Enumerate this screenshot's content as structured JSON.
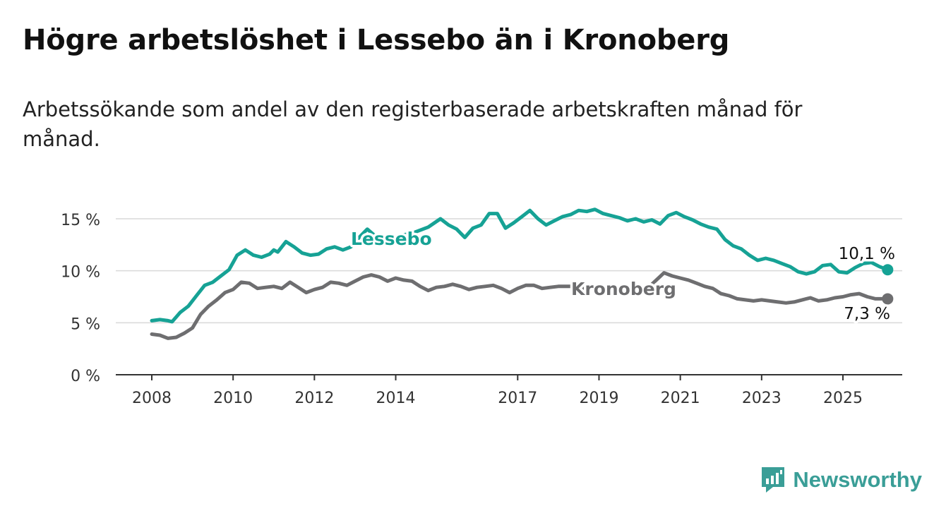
{
  "title": "Högre arbetslöshet i Lessebo än i Kronoberg",
  "subtitle": "Arbetssökande som andel av den registerbaserade arbetskraften månad för månad.",
  "brand": {
    "name": "Newsworthy",
    "icon": "newsworthy-logo-icon"
  },
  "colors": {
    "lessebo": "#16a295",
    "kronoberg": "#6e6e70",
    "grid": "#d9d9d9",
    "axis": "#333333"
  },
  "chart_data": {
    "type": "line",
    "title": "Högre arbetslöshet i Lessebo än i Kronoberg",
    "subtitle": "Arbetssökande som andel av den registerbaserade arbetskraften månad för månad.",
    "xlabel": "",
    "ylabel": "",
    "y_ticks": [
      0,
      5,
      10,
      15
    ],
    "y_tick_labels": [
      "0 %",
      "5 %",
      "10 %",
      "15 %"
    ],
    "x_ticks": [
      2008,
      2010,
      2012,
      2014,
      2017,
      2019,
      2021,
      2023,
      2025
    ],
    "x_tick_labels": [
      "2008",
      "2010",
      "2012",
      "2014",
      "2017",
      "2019",
      "2021",
      "2023",
      "2025"
    ],
    "xlim": [
      2007.6,
      2026.4
    ],
    "ylim": [
      0,
      16.5
    ],
    "grid": true,
    "series": [
      {
        "name": "Lessebo",
        "color": "#16a295",
        "end_label": "10,1 %",
        "points": [
          [
            2008.0,
            5.2
          ],
          [
            2008.2,
            5.3
          ],
          [
            2008.4,
            5.2
          ],
          [
            2008.5,
            5.1
          ],
          [
            2008.7,
            6.0
          ],
          [
            2008.9,
            6.6
          ],
          [
            2009.1,
            7.6
          ],
          [
            2009.3,
            8.6
          ],
          [
            2009.5,
            8.9
          ],
          [
            2009.7,
            9.5
          ],
          [
            2009.9,
            10.1
          ],
          [
            2010.0,
            10.8
          ],
          [
            2010.1,
            11.5
          ],
          [
            2010.3,
            12.0
          ],
          [
            2010.5,
            11.5
          ],
          [
            2010.7,
            11.3
          ],
          [
            2010.9,
            11.6
          ],
          [
            2011.0,
            12.0
          ],
          [
            2011.1,
            11.8
          ],
          [
            2011.3,
            12.8
          ],
          [
            2011.5,
            12.3
          ],
          [
            2011.7,
            11.7
          ],
          [
            2011.9,
            11.5
          ],
          [
            2012.1,
            11.6
          ],
          [
            2012.3,
            12.1
          ],
          [
            2012.5,
            12.3
          ],
          [
            2012.7,
            12.0
          ],
          [
            2012.9,
            12.3
          ],
          [
            2013.1,
            13.2
          ],
          [
            2013.3,
            14.0
          ],
          [
            2013.6,
            13.0
          ],
          [
            2014.0,
            13.3
          ],
          [
            2014.4,
            13.6
          ],
          [
            2014.8,
            14.2
          ],
          [
            2015.1,
            15.0
          ],
          [
            2015.3,
            14.4
          ],
          [
            2015.5,
            14.0
          ],
          [
            2015.7,
            13.2
          ],
          [
            2015.9,
            14.1
          ],
          [
            2016.1,
            14.4
          ],
          [
            2016.3,
            15.5
          ],
          [
            2016.5,
            15.5
          ],
          [
            2016.7,
            14.1
          ],
          [
            2016.9,
            14.6
          ],
          [
            2017.1,
            15.2
          ],
          [
            2017.3,
            15.8
          ],
          [
            2017.5,
            15.0
          ],
          [
            2017.7,
            14.4
          ],
          [
            2017.9,
            14.8
          ],
          [
            2018.1,
            15.2
          ],
          [
            2018.3,
            15.4
          ],
          [
            2018.5,
            15.8
          ],
          [
            2018.7,
            15.7
          ],
          [
            2018.9,
            15.9
          ],
          [
            2019.1,
            15.5
          ],
          [
            2019.3,
            15.3
          ],
          [
            2019.5,
            15.1
          ],
          [
            2019.7,
            14.8
          ],
          [
            2019.9,
            15.0
          ],
          [
            2020.1,
            14.7
          ],
          [
            2020.3,
            14.9
          ],
          [
            2020.5,
            14.5
          ],
          [
            2020.7,
            15.3
          ],
          [
            2020.9,
            15.6
          ],
          [
            2021.1,
            15.2
          ],
          [
            2021.3,
            14.9
          ],
          [
            2021.5,
            14.5
          ],
          [
            2021.7,
            14.2
          ],
          [
            2021.9,
            14.0
          ],
          [
            2022.1,
            13.0
          ],
          [
            2022.3,
            12.4
          ],
          [
            2022.5,
            12.1
          ],
          [
            2022.7,
            11.5
          ],
          [
            2022.9,
            11.0
          ],
          [
            2023.1,
            11.2
          ],
          [
            2023.3,
            11.0
          ],
          [
            2023.5,
            10.7
          ],
          [
            2023.7,
            10.4
          ],
          [
            2023.9,
            9.9
          ],
          [
            2024.1,
            9.7
          ],
          [
            2024.3,
            9.9
          ],
          [
            2024.5,
            10.5
          ],
          [
            2024.7,
            10.6
          ],
          [
            2024.9,
            9.9
          ],
          [
            2025.1,
            9.8
          ],
          [
            2025.3,
            10.3
          ],
          [
            2025.5,
            10.7
          ],
          [
            2025.7,
            10.8
          ],
          [
            2025.9,
            10.4
          ],
          [
            2026.1,
            10.1
          ]
        ]
      },
      {
        "name": "Kronoberg",
        "color": "#6e6e70",
        "end_label": "7,3 %",
        "points": [
          [
            2008.0,
            3.9
          ],
          [
            2008.2,
            3.8
          ],
          [
            2008.4,
            3.5
          ],
          [
            2008.6,
            3.6
          ],
          [
            2008.8,
            4.0
          ],
          [
            2009.0,
            4.5
          ],
          [
            2009.2,
            5.8
          ],
          [
            2009.4,
            6.6
          ],
          [
            2009.6,
            7.2
          ],
          [
            2009.8,
            7.9
          ],
          [
            2010.0,
            8.2
          ],
          [
            2010.2,
            8.9
          ],
          [
            2010.4,
            8.8
          ],
          [
            2010.6,
            8.3
          ],
          [
            2010.8,
            8.4
          ],
          [
            2011.0,
            8.5
          ],
          [
            2011.2,
            8.3
          ],
          [
            2011.4,
            8.9
          ],
          [
            2011.6,
            8.4
          ],
          [
            2011.8,
            7.9
          ],
          [
            2012.0,
            8.2
          ],
          [
            2012.2,
            8.4
          ],
          [
            2012.4,
            8.9
          ],
          [
            2012.6,
            8.8
          ],
          [
            2012.8,
            8.6
          ],
          [
            2013.0,
            9.0
          ],
          [
            2013.2,
            9.4
          ],
          [
            2013.4,
            9.6
          ],
          [
            2013.6,
            9.4
          ],
          [
            2013.8,
            9.0
          ],
          [
            2014.0,
            9.3
          ],
          [
            2014.2,
            9.1
          ],
          [
            2014.4,
            9.0
          ],
          [
            2014.6,
            8.5
          ],
          [
            2014.8,
            8.1
          ],
          [
            2015.0,
            8.4
          ],
          [
            2015.2,
            8.5
          ],
          [
            2015.4,
            8.7
          ],
          [
            2015.6,
            8.5
          ],
          [
            2015.8,
            8.2
          ],
          [
            2016.0,
            8.4
          ],
          [
            2016.2,
            8.5
          ],
          [
            2016.4,
            8.6
          ],
          [
            2016.6,
            8.3
          ],
          [
            2016.8,
            7.9
          ],
          [
            2017.0,
            8.3
          ],
          [
            2017.2,
            8.6
          ],
          [
            2017.4,
            8.6
          ],
          [
            2017.6,
            8.3
          ],
          [
            2017.8,
            8.4
          ],
          [
            2018.0,
            8.5
          ],
          [
            2018.3,
            8.5
          ],
          [
            2018.5,
            8.3
          ],
          [
            2019.0,
            8.3
          ],
          [
            2019.5,
            8.2
          ],
          [
            2020.0,
            8.3
          ],
          [
            2020.3,
            8.7
          ],
          [
            2020.6,
            9.8
          ],
          [
            2020.8,
            9.5
          ],
          [
            2021.0,
            9.3
          ],
          [
            2021.2,
            9.1
          ],
          [
            2021.4,
            8.8
          ],
          [
            2021.6,
            8.5
          ],
          [
            2021.8,
            8.3
          ],
          [
            2022.0,
            7.8
          ],
          [
            2022.2,
            7.6
          ],
          [
            2022.4,
            7.3
          ],
          [
            2022.6,
            7.2
          ],
          [
            2022.8,
            7.1
          ],
          [
            2023.0,
            7.2
          ],
          [
            2023.2,
            7.1
          ],
          [
            2023.4,
            7.0
          ],
          [
            2023.6,
            6.9
          ],
          [
            2023.8,
            7.0
          ],
          [
            2024.0,
            7.2
          ],
          [
            2024.2,
            7.4
          ],
          [
            2024.4,
            7.1
          ],
          [
            2024.6,
            7.2
          ],
          [
            2024.8,
            7.4
          ],
          [
            2025.0,
            7.5
          ],
          [
            2025.2,
            7.7
          ],
          [
            2025.4,
            7.8
          ],
          [
            2025.6,
            7.5
          ],
          [
            2025.8,
            7.3
          ],
          [
            2026.1,
            7.3
          ]
        ]
      }
    ]
  }
}
